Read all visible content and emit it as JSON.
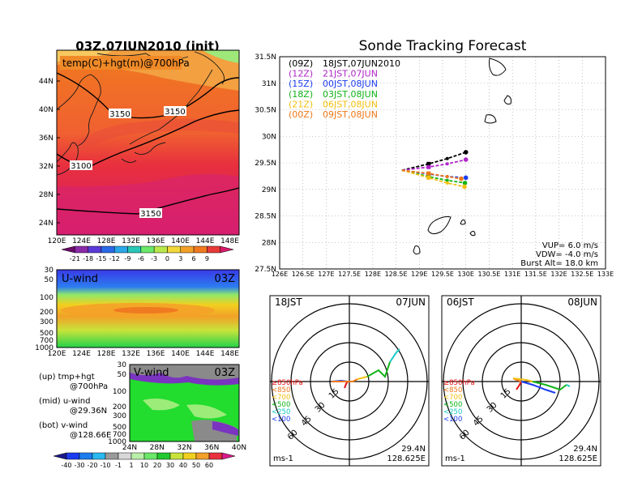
{
  "map_panel": {
    "title": "03Z,07JUN2010 (init)",
    "label": "temp(C)+hgt(m)@700hPa",
    "contour_labels": [
      "3150",
      "3150",
      "3100",
      "3150"
    ],
    "lat_ticks": [
      "44N",
      "40N",
      "36N",
      "32N",
      "28N",
      "24N"
    ],
    "lon_ticks": [
      "120E",
      "124E",
      "128E",
      "132E",
      "136E",
      "140E",
      "144E",
      "148E"
    ],
    "colorbar_labels": [
      "-21",
      "-18",
      "-15",
      "-12",
      "-9",
      "-6",
      "-3",
      "0",
      "3",
      "6",
      "9"
    ]
  },
  "uwind_panel": {
    "label": "U-wind",
    "time": "03Z",
    "p_ticks": [
      "30",
      "50",
      "100",
      "200",
      "300",
      "500",
      "700",
      "1000"
    ],
    "lon_ticks": [
      "120E",
      "124E",
      "128E",
      "132E",
      "136E",
      "140E",
      "144E",
      "148E"
    ]
  },
  "vwind_panel": {
    "label": "V-wind",
    "time": "03Z",
    "p_ticks": [
      "30",
      "50",
      "100",
      "200",
      "300",
      "500",
      "700",
      "1000"
    ],
    "lat_ticks": [
      "24N",
      "28N",
      "32N",
      "36N",
      "40N"
    ]
  },
  "legend_notes": [
    [
      "(up) tmp+hgt",
      "@700hPa"
    ],
    [
      "(mid) u-wind",
      "@29.36N"
    ],
    [
      "(bot) v-wind",
      "@128.66E"
    ]
  ],
  "wind_colorbar_labels": [
    "-40",
    "-30",
    "-20",
    "-10",
    "-1",
    "1",
    "10",
    "20",
    "30",
    "40",
    "50",
    "60"
  ],
  "tracking": {
    "title": "Sonde Tracking Forecast",
    "lat_ticks": [
      "31.5N",
      "31N",
      "30.5N",
      "30N",
      "29.5N",
      "29N",
      "28.5N",
      "28N",
      "27.5N"
    ],
    "lon_ticks": [
      "126E",
      "126.5E",
      "127E",
      "127.5E",
      "128E",
      "128.5E",
      "129E",
      "129.5E",
      "130E",
      "130.5E",
      "131E",
      "131.5E",
      "132E",
      "132.5E",
      "133E"
    ],
    "legend": [
      {
        "code": "(09Z)",
        "text": "18JST,07JUN2010",
        "color": "#000000"
      },
      {
        "code": "(12Z)",
        "text": "21JST,07JUN",
        "color": "#b026c8"
      },
      {
        "code": "(15Z)",
        "text": "00JST,08JUN",
        "color": "#1c3cf0"
      },
      {
        "code": "(18Z)",
        "text": "03JST,08JUN",
        "color": "#12b418"
      },
      {
        "code": "(21Z)",
        "text": "06JST,08JUN",
        "color": "#f2c012"
      },
      {
        "code": "(00Z)",
        "text": "09JST,08JUN",
        "color": "#f07818"
      }
    ],
    "params": [
      "VUP= 6.0 m/s",
      "VDW= -4.0 m/s",
      "Burst Alt= 18.0 km"
    ]
  },
  "chart_data": {
    "type": "scatter",
    "title": "Sonde Tracking Forecast",
    "xlim": [
      126,
      133
    ],
    "ylim": [
      27.5,
      31.5
    ],
    "launch": [
      128.625,
      29.36
    ],
    "series": [
      {
        "name": "(09Z) 18JST,07JUN2010",
        "color": "#000000",
        "points": [
          [
            128.625,
            29.36
          ],
          [
            129.2,
            29.48
          ],
          [
            129.6,
            29.58
          ],
          [
            130.0,
            29.7
          ]
        ]
      },
      {
        "name": "(12Z) 21JST,07JUN",
        "color": "#b026c8",
        "points": [
          [
            128.625,
            29.36
          ],
          [
            129.2,
            29.42
          ],
          [
            129.6,
            29.48
          ],
          [
            130.0,
            29.56
          ]
        ]
      },
      {
        "name": "(15Z) 00JST,08JUN",
        "color": "#1c3cf0",
        "points": [
          [
            128.625,
            29.36
          ],
          [
            129.2,
            29.29
          ],
          [
            129.6,
            29.24
          ],
          [
            130.0,
            29.22
          ]
        ]
      },
      {
        "name": "(18Z) 03JST,08JUN",
        "color": "#12b418",
        "points": [
          [
            128.625,
            29.36
          ],
          [
            129.2,
            29.24
          ],
          [
            129.6,
            29.17
          ],
          [
            129.98,
            29.12
          ]
        ]
      },
      {
        "name": "(21Z) 06JST,08JUN",
        "color": "#f2c012",
        "points": [
          [
            128.625,
            29.36
          ],
          [
            129.2,
            29.22
          ],
          [
            129.6,
            29.12
          ],
          [
            129.97,
            29.05
          ]
        ]
      },
      {
        "name": "(00Z) 09JST,08JUN",
        "color": "#f07818",
        "points": [
          [
            128.625,
            29.36
          ],
          [
            129.2,
            29.3
          ],
          [
            129.6,
            29.24
          ],
          [
            129.9,
            29.2
          ]
        ]
      }
    ]
  },
  "hodographs": [
    {
      "left": "18JST",
      "right": "07JUN",
      "speed_labels": [
        "15",
        "30",
        "45",
        "60"
      ],
      "layer_labels": [
        {
          "text": "≥850hPa",
          "color": "#e81010"
        },
        {
          "text": "<850",
          "color": "#f07818"
        },
        {
          "text": "<700",
          "color": "#f2c012"
        },
        {
          "text": "<500",
          "color": "#12b418"
        },
        {
          "text": "<250",
          "color": "#18c8c8"
        },
        {
          "text": "<100",
          "color": "#1c3cf0"
        }
      ],
      "unit": "ms-1",
      "lat": "29.4N",
      "lon": "128.625E"
    },
    {
      "left": "06JST",
      "right": "08JUN",
      "speed_labels": [
        "15",
        "30",
        "45",
        "60"
      ],
      "layer_labels": [
        {
          "text": "≥850hPa",
          "color": "#e81010"
        },
        {
          "text": "<850",
          "color": "#f07818"
        },
        {
          "text": "<700",
          "color": "#f2c012"
        },
        {
          "text": "<500",
          "color": "#12b418"
        },
        {
          "text": "<250",
          "color": "#18c8c8"
        },
        {
          "text": "<100",
          "color": "#1c3cf0"
        }
      ],
      "unit": "ms-1",
      "lat": "29.4N",
      "lon": "128.625E"
    }
  ]
}
